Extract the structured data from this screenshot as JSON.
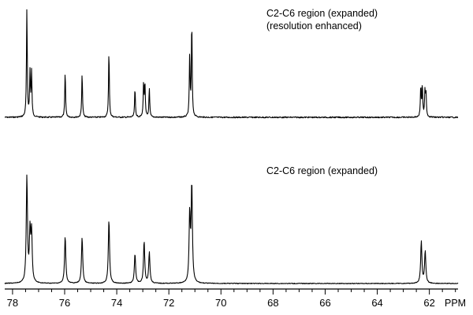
{
  "chart_data": [
    {
      "type": "line",
      "title": "C2-C6 region (expanded)",
      "subtitle": "(resolution enhanced)",
      "xlabel": "PPM",
      "xlim": [
        78.3,
        60.9
      ],
      "x_reversed": true,
      "ylim": [
        0,
        1
      ],
      "grid": false,
      "series": [
        {
          "peaks": [
            {
              "x": 77.45,
              "y": 0.98,
              "w": 0.018
            },
            {
              "x": 77.33,
              "y": 0.4,
              "w": 0.018
            },
            {
              "x": 77.27,
              "y": 0.4,
              "w": 0.018
            },
            {
              "x": 75.98,
              "y": 0.41,
              "w": 0.018
            },
            {
              "x": 75.33,
              "y": 0.4,
              "w": 0.018
            },
            {
              "x": 74.3,
              "y": 0.6,
              "w": 0.018
            },
            {
              "x": 73.3,
              "y": 0.26,
              "w": 0.018
            },
            {
              "x": 72.97,
              "y": 0.3,
              "w": 0.018
            },
            {
              "x": 72.92,
              "y": 0.3,
              "w": 0.018
            },
            {
              "x": 72.75,
              "y": 0.26,
              "w": 0.018
            },
            {
              "x": 71.2,
              "y": 0.56,
              "w": 0.018
            },
            {
              "x": 71.12,
              "y": 0.86,
              "w": 0.018
            },
            {
              "x": 62.33,
              "y": 0.28,
              "w": 0.018
            },
            {
              "x": 62.27,
              "y": 0.28,
              "w": 0.018
            },
            {
              "x": 62.17,
              "y": 0.22,
              "w": 0.018
            },
            {
              "x": 62.13,
              "y": 0.22,
              "w": 0.018
            }
          ]
        }
      ]
    },
    {
      "type": "line",
      "title": "C2-C6 region (expanded)",
      "xlabel": "PPM",
      "xlim": [
        78.3,
        60.9
      ],
      "x_reversed": true,
      "ylim": [
        0,
        1
      ],
      "grid": false,
      "xticks": [
        78,
        76,
        74,
        72,
        70,
        68,
        66,
        64,
        62
      ],
      "xtick_labels": [
        "78",
        "76",
        "74",
        "72",
        "70",
        "68",
        "66",
        "64",
        "62"
      ],
      "series": [
        {
          "peaks": [
            {
              "x": 77.45,
              "y": 0.96,
              "w": 0.028
            },
            {
              "x": 77.33,
              "y": 0.44,
              "w": 0.028
            },
            {
              "x": 77.27,
              "y": 0.44,
              "w": 0.028
            },
            {
              "x": 75.98,
              "y": 0.43,
              "w": 0.028
            },
            {
              "x": 75.33,
              "y": 0.42,
              "w": 0.028
            },
            {
              "x": 74.3,
              "y": 0.58,
              "w": 0.028
            },
            {
              "x": 73.3,
              "y": 0.27,
              "w": 0.028
            },
            {
              "x": 72.95,
              "y": 0.38,
              "w": 0.028
            },
            {
              "x": 72.75,
              "y": 0.28,
              "w": 0.028
            },
            {
              "x": 71.2,
              "y": 0.61,
              "w": 0.028
            },
            {
              "x": 71.12,
              "y": 0.88,
              "w": 0.028
            },
            {
              "x": 62.31,
              "y": 0.38,
              "w": 0.028
            },
            {
              "x": 62.16,
              "y": 0.29,
              "w": 0.028
            }
          ]
        }
      ]
    }
  ]
}
